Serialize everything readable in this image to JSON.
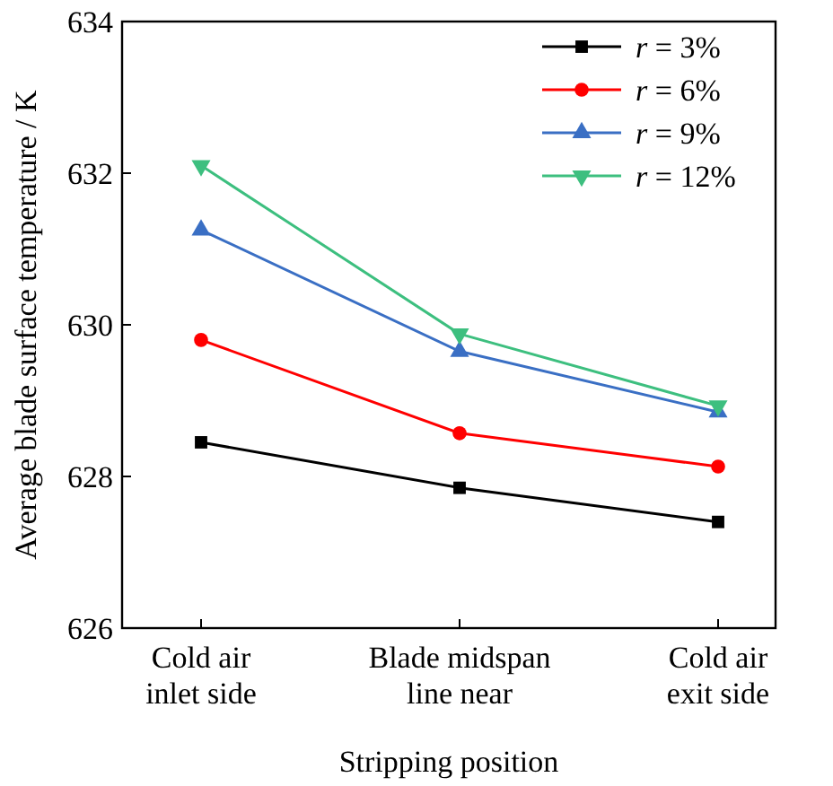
{
  "chart_data": {
    "type": "line",
    "xlabel": "Stripping position",
    "ylabel": "Average blade surface temperature / K",
    "categories": [
      "Cold air\ninlet side",
      "Blade midspan\nline near",
      "Cold air\nexit side"
    ],
    "series": [
      {
        "name": "r = 3%",
        "color": "#000000",
        "marker": "square",
        "values": [
          628.45,
          627.85,
          627.4
        ]
      },
      {
        "name": "r = 6%",
        "color": "#ff0000",
        "marker": "circle",
        "values": [
          629.8,
          628.57,
          628.13
        ]
      },
      {
        "name": "r = 9%",
        "color": "#3a6fc4",
        "marker": "triangle",
        "values": [
          631.25,
          629.65,
          628.85
        ]
      },
      {
        "name": "r = 12%",
        "color": "#3dbf7f",
        "marker": "triangle-down",
        "values": [
          632.1,
          629.88,
          628.93
        ]
      }
    ],
    "ylim": [
      626,
      634
    ],
    "yticks": [
      626,
      628,
      630,
      632,
      634
    ],
    "legend": "top right",
    "grid": false
  }
}
